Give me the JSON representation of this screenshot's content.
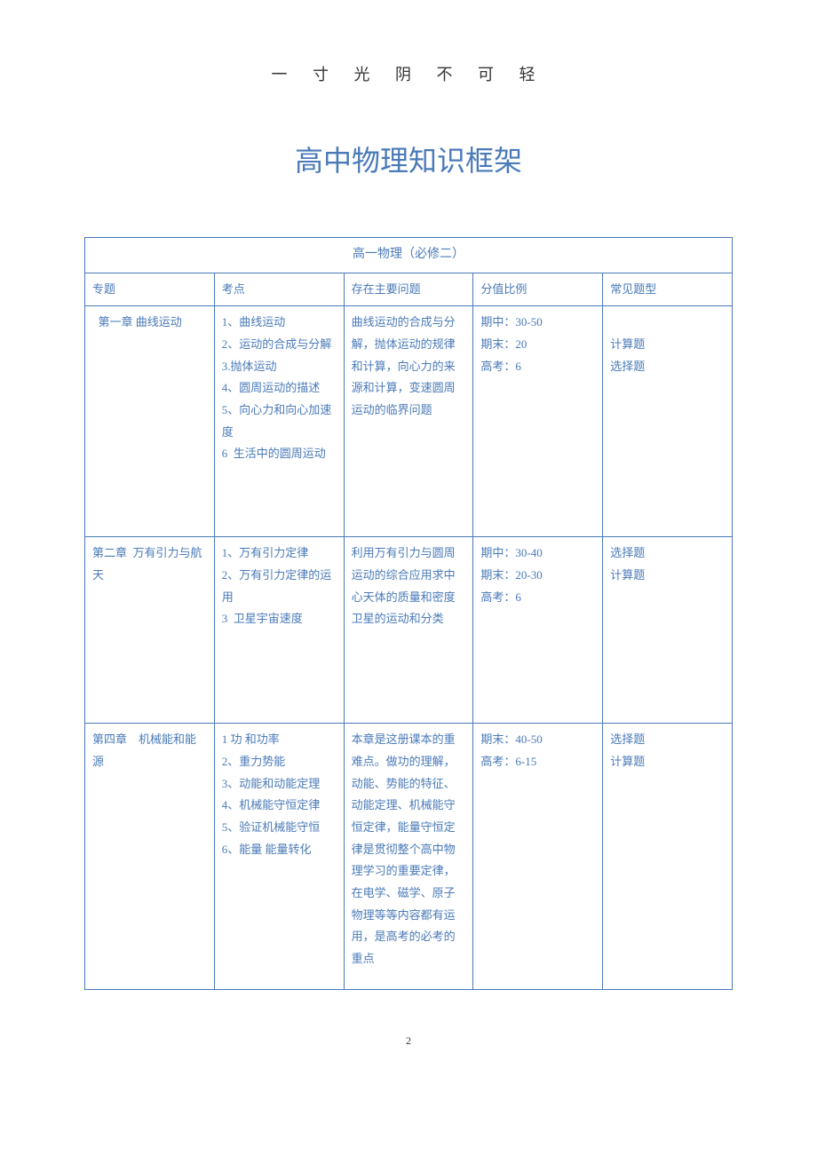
{
  "header_text": "一 寸 光 阴 不 可 轻",
  "main_title": "高中物理知识框架",
  "table_caption": "高一物理（必修二）",
  "headers": {
    "topic": "专题",
    "points": "考点",
    "problems": "存在主要问题",
    "score": "分值比例",
    "types": "常见题型"
  },
  "rows": [
    {
      "topic": "  第一章 曲线运动",
      "points": "1、曲线运动\n2、运动的合成与分解\n3.抛体运动\n4、圆周运动的描述\n5、向心力和向心加速度\n6  生活中的圆周运动",
      "problems": "曲线运动的合成与分解，抛体运动的规律和计算，向心力的来源和计算，变速圆周运动的临界问题",
      "score": "期中：30-50\n期末：20\n高考：6",
      "types": "\n计算题\n选择题"
    },
    {
      "topic": "第二章  万有引力与航天",
      "points": "1、万有引力定律\n2、万有引力定律的运用\n3  卫星宇宙速度",
      "problems": "利用万有引力与圆周运动的综合应用求中心天体的质量和密度\n卫星的运动和分类",
      "score": "期中：30-40\n期末：20-30\n高考：6",
      "types": "选择题\n计算题"
    },
    {
      "topic": "第四章    机械能和能源",
      "points": "1 功 和功率\n2、重力势能\n3、动能和动能定理 4、机械能守恒定律\n5、验证机械能守恒\n6、能量 能量转化",
      "problems": "本章是这册课本的重难点。做功的理解，动能、势能的特征、动能定理、机械能守恒定律，能量守恒定律是贯彻整个高中物理学习的重要定律，在电学、磁学、原子物理等等内容都有运用，是高考的必考的重点",
      "score": "期末：40-50\n高考：6-15",
      "types": "选择题\n计算题"
    }
  ],
  "page_number": "2",
  "colors": {
    "primary": "#4a7ab8",
    "text": "#333333",
    "background": "#ffffff"
  }
}
